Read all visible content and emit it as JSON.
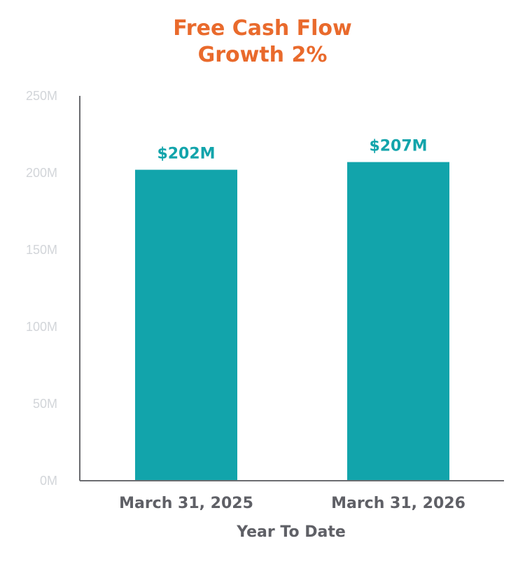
{
  "chart_data": {
    "type": "bar",
    "title": "Free Cash Flow",
    "subtitle": "Growth 2%",
    "categories": [
      "March 31, 2025",
      "March 31, 2026"
    ],
    "values": [
      202,
      207
    ],
    "value_labels": [
      "$202M",
      "$207M"
    ],
    "xlabel": "Year To Date",
    "ylabel": "",
    "ylim": [
      0,
      250
    ],
    "y_ticks": [
      0,
      50,
      100,
      150,
      200,
      250
    ],
    "y_tick_labels": [
      "0M",
      "50M",
      "100M",
      "150M",
      "200M",
      "250M"
    ],
    "grid": false,
    "legend": "none"
  },
  "colors": {
    "bar": "#12a4ab",
    "value_label": "#12a4ab",
    "title": "#e96a2c",
    "tick_label": "#d2d5d9",
    "category_label": "#5f6066",
    "axis_title": "#5f6066",
    "axis_line": "#6b6c70"
  }
}
